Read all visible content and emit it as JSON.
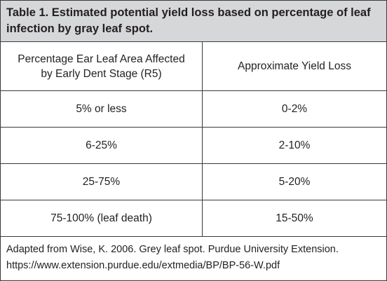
{
  "table": {
    "title": "Table 1. Estimated potential yield loss based on percentage of leaf infection by gray leaf spot.",
    "headers": [
      "Percentage Ear Leaf Area Affected by Early Dent Stage (R5)",
      "Approximate Yield Loss"
    ],
    "rows": [
      [
        "5% or less",
        "0-2%"
      ],
      [
        "6-25%",
        "2-10%"
      ],
      [
        "25-75%",
        "5-20%"
      ],
      [
        "75-100% (leaf death)",
        "15-50%"
      ]
    ]
  },
  "footer": {
    "line1": "Adapted from Wise, K. 2006. Grey leaf spot. Purdue University Extension.",
    "line2": "https://www.extension.purdue.edu/extmedia/BP/BP-56-W.pdf"
  }
}
